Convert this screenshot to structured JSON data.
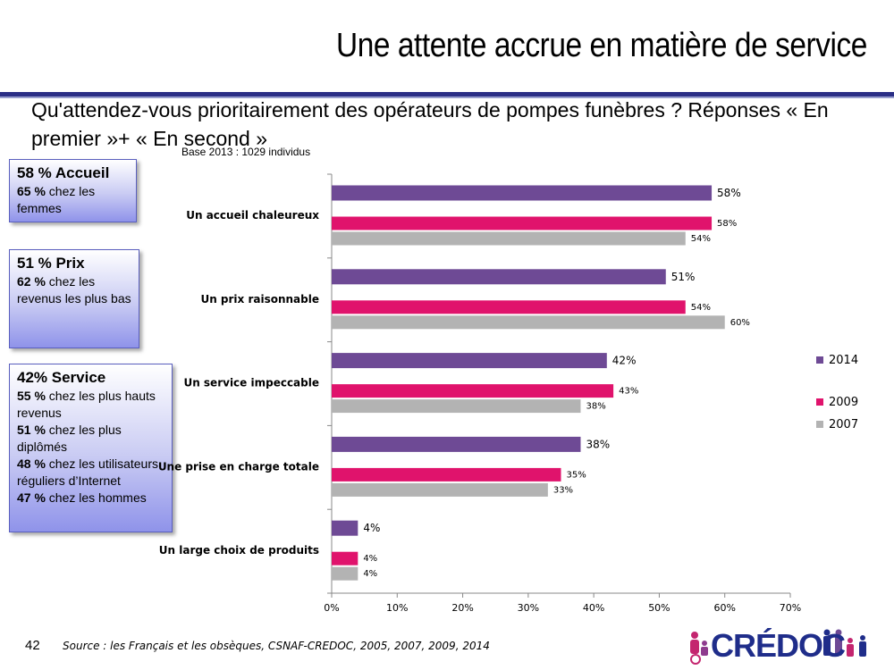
{
  "title": "Une attente accrue en matière de service",
  "question": "Qu'attendez-vous prioritairement des opérateurs de pompes funèbres ? Réponses « En premier »+ « En second »",
  "base": "Base 2013 : 1029 individus",
  "boxes": {
    "accueil": {
      "head": "58 % Accueil",
      "lines": [
        {
          "pct": "65 %",
          "text": " chez les femmes"
        }
      ]
    },
    "prix": {
      "head": "51 % Prix",
      "lines": [
        {
          "pct": "62 %",
          "text": " chez les revenus les plus bas"
        }
      ]
    },
    "service": {
      "head": "42% Service",
      "lines": [
        {
          "pct": "55 %",
          "text": " chez les plus hauts revenus"
        },
        {
          "pct": "51 %",
          "text": " chez les plus diplômés"
        },
        {
          "pct": "48 %",
          "text": " chez les utilisateurs réguliers d’Internet"
        },
        {
          "pct": "47 %",
          "text": " chez les hommes"
        }
      ]
    }
  },
  "chart_data": {
    "type": "bar",
    "orientation": "horizontal",
    "categories": [
      "Un accueil chaleureux",
      "Un prix raisonnable",
      "Un service impeccable",
      "Une prise en charge totale",
      "Un large choix de produits"
    ],
    "series": [
      {
        "name": "2014",
        "values": [
          58,
          51,
          42,
          38,
          4
        ],
        "color": "#6e4a95"
      },
      {
        "name": "2009",
        "values": [
          58,
          54,
          43,
          35,
          4
        ],
        "color": "#e0136c"
      },
      {
        "name": "2007",
        "values": [
          54,
          60,
          38,
          33,
          4
        ],
        "color": "#b3b3b3"
      }
    ],
    "xlim": [
      0,
      70
    ],
    "xticks": [
      "0%",
      "10%",
      "20%",
      "30%",
      "40%",
      "50%",
      "60%",
      "70%"
    ],
    "value_suffix": "%",
    "legend_position": "right",
    "grid": false
  },
  "footer": {
    "page_number": "42",
    "source": "Source : les Français et les obsèques, CSNAF-CREDOC, 2005, 2007, 2009, 2014",
    "logo_text": "CRÉDOC"
  }
}
